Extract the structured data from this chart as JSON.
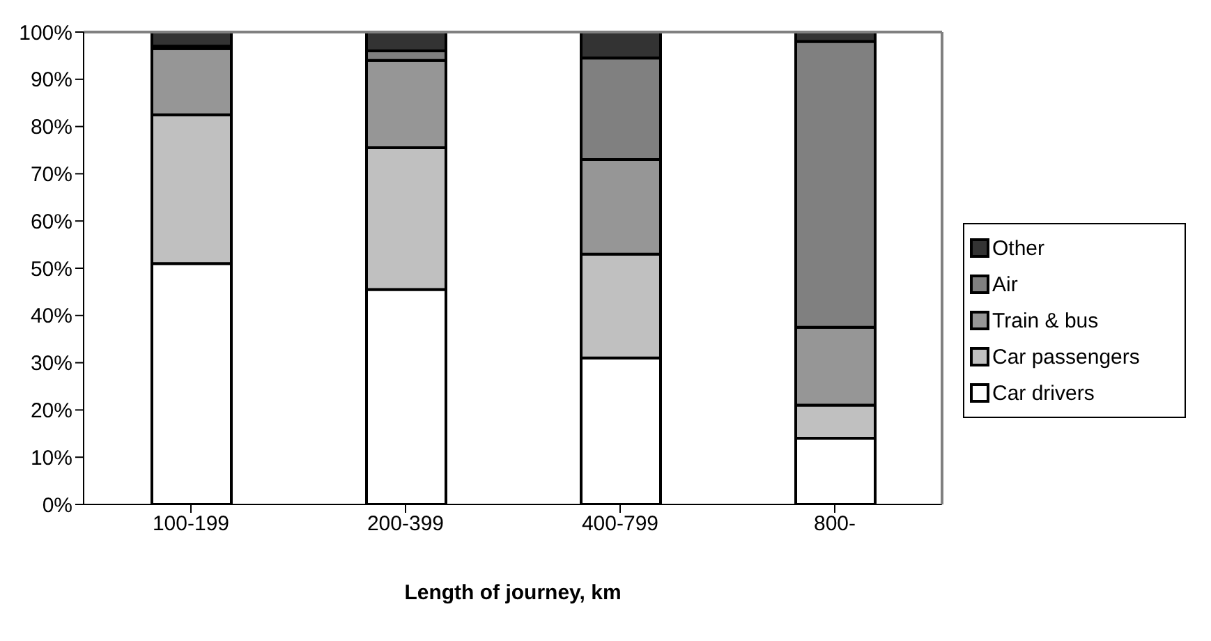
{
  "chart_data": {
    "type": "bar",
    "stacked": true,
    "xlabel": "Length of journey, km",
    "categories": [
      "100-199",
      "200-399",
      "400-799",
      "800-"
    ],
    "series": [
      {
        "name": "Car drivers",
        "color": "#ffffff",
        "values": [
          51,
          45.5,
          31,
          14
        ]
      },
      {
        "name": "Car passengers",
        "color": "#c0c0c0",
        "values": [
          31.5,
          30,
          22,
          7
        ]
      },
      {
        "name": "Train & bus",
        "color": "#969696",
        "values": [
          14,
          18.5,
          20,
          16.5
        ]
      },
      {
        "name": "Air",
        "color": "#808080",
        "values": [
          0.5,
          2,
          21.5,
          60.5
        ]
      },
      {
        "name": "Other",
        "color": "#333333",
        "values": [
          3,
          4,
          5.5,
          2
        ]
      }
    ],
    "ylim": [
      0,
      100
    ],
    "yticks": [
      {
        "value": 0,
        "label": "0%"
      },
      {
        "value": 10,
        "label": "10%"
      },
      {
        "value": 20,
        "label": "20%"
      },
      {
        "value": 30,
        "label": "30%"
      },
      {
        "value": 40,
        "label": "40%"
      },
      {
        "value": 50,
        "label": "50%"
      },
      {
        "value": 60,
        "label": "60%"
      },
      {
        "value": 70,
        "label": "70%"
      },
      {
        "value": 80,
        "label": "80%"
      },
      {
        "value": 90,
        "label": "90%"
      },
      {
        "value": 100,
        "label": "100%"
      }
    ],
    "grid": false,
    "legend": "right"
  }
}
